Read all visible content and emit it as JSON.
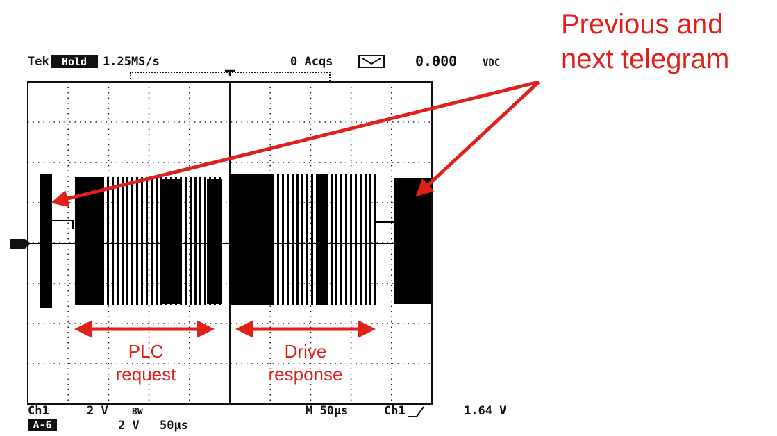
{
  "header": {
    "brand": "Tek",
    "mode": "Hold",
    "sample_rate": "1.25MS/s",
    "acquisitions": "0 Acqs",
    "reading": "0.000",
    "reading_unit": "VDC"
  },
  "footer": {
    "channel": "Ch1",
    "volts_div": "2 V",
    "bandwidth": "BW",
    "timebase": "M 50µs",
    "trigger_source": "Ch1",
    "trigger_level": "1.64 V",
    "math": "A-6",
    "math_volts": "2 V",
    "math_time": "50µs"
  },
  "annotations": {
    "title_line1": "Previous and",
    "title_line2": "next telegram",
    "request_line1": "PLC",
    "request_line2": "request",
    "response_line1": "Drive",
    "response_line2": "response"
  }
}
